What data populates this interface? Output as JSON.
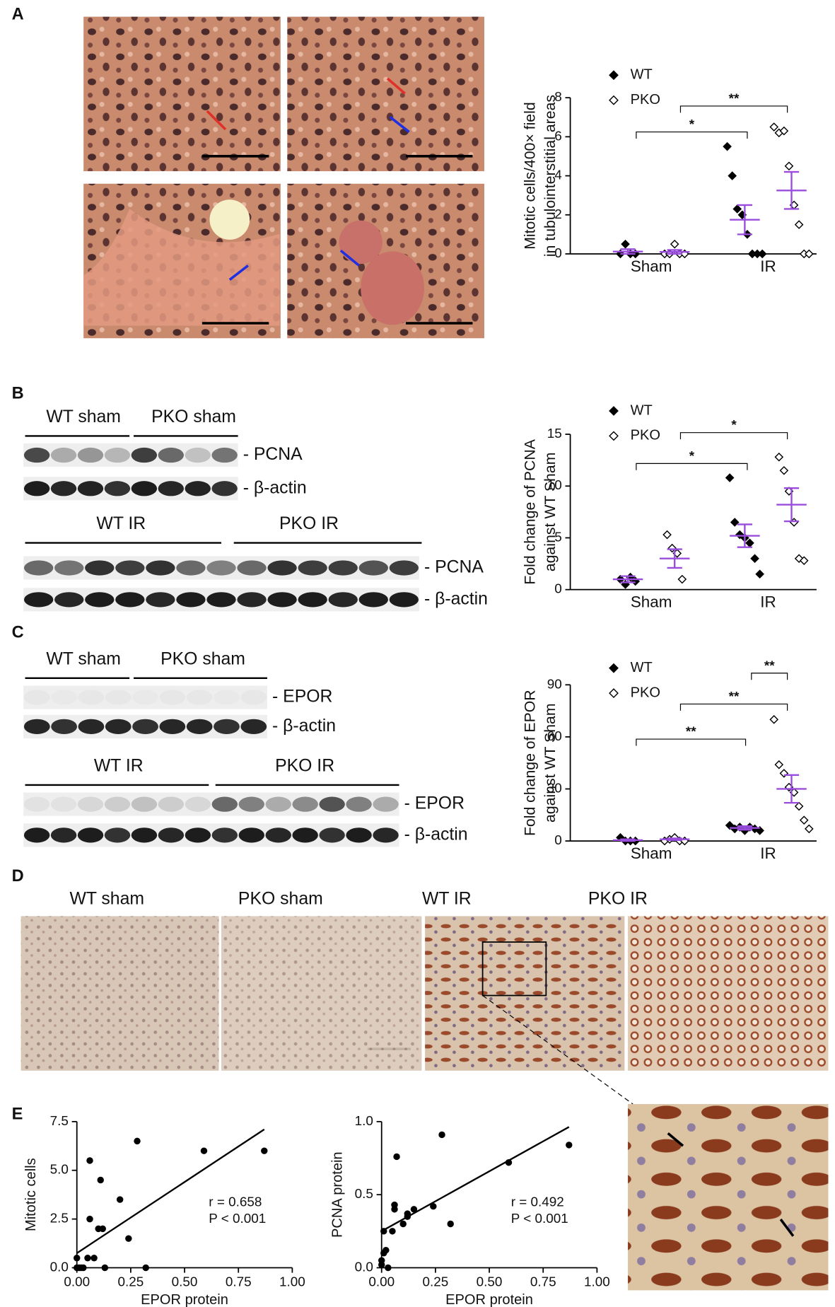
{
  "panel_labels": [
    "A",
    "B",
    "C",
    "D",
    "E"
  ],
  "blots": {
    "B": {
      "top_groups": [
        "WT sham",
        "PKO sham"
      ],
      "top_rows": [
        "- PCNA",
        "- β-actin"
      ],
      "bottom_groups": [
        "WT IR",
        "PKO IR"
      ],
      "bottom_rows": [
        "- PCNA",
        "- β-actin"
      ]
    },
    "C": {
      "top_groups": [
        "WT sham",
        "PKO sham"
      ],
      "top_rows": [
        "- EPOR",
        "- β-actin"
      ],
      "bottom_groups": [
        "WT IR",
        "PKO IR"
      ],
      "bottom_rows": [
        "- EPOR",
        "- β-actin"
      ]
    }
  },
  "micrographs": [
    "WT sham",
    "PKO sham",
    "WT IR",
    "PKO IR"
  ],
  "chart_data": [
    {
      "type": "dot",
      "ylabel": [
        "Mitotic cells/400× field",
        "in tubulointerstitial areas"
      ],
      "categories": [
        "Sham",
        "IR"
      ],
      "ylim": [
        0,
        8
      ],
      "yticks": [
        0,
        2,
        4,
        6,
        8
      ],
      "mean_color": "#9a4ddc",
      "series": [
        {
          "name": "WT",
          "marker": "filled",
          "values": [
            [
              0,
              0.5,
              0,
              0
            ],
            [
              5.5,
              4,
              2.3,
              2,
              1,
              0,
              0,
              0
            ]
          ],
          "mean": [
            0.12,
            1.75
          ],
          "sem": [
            0.12,
            0.75
          ]
        },
        {
          "name": "PKO",
          "marker": "open",
          "values": [
            [
              0,
              0,
              0.5,
              0,
              0
            ],
            [
              6.5,
              6.2,
              6.3,
              4.5,
              2.5,
              1.5,
              0,
              0
            ]
          ],
          "mean": [
            0.1,
            3.25
          ],
          "sem": [
            0.1,
            0.95
          ]
        }
      ],
      "annotations": [
        "*",
        "**"
      ]
    },
    {
      "type": "dot",
      "ylabel": [
        "Fold change of PCNA",
        "against WT Sham"
      ],
      "categories": [
        "Sham",
        "IR"
      ],
      "ylim": [
        0,
        15
      ],
      "yticks": [
        0,
        5,
        10,
        15
      ],
      "mean_color": "#9a4ddc",
      "series": [
        {
          "name": "WT",
          "marker": "filled",
          "values": [
            [
              1,
              0.5,
              1.2,
              0.8
            ],
            [
              10.8,
              6.5,
              5.3,
              5,
              4.5,
              3,
              1.5
            ]
          ],
          "mean": [
            1,
            5.2
          ],
          "sem": [
            0.3,
            1.1
          ]
        },
        {
          "name": "PKO",
          "marker": "open",
          "values": [
            [
              5.3,
              4,
              3.5,
              1
            ],
            [
              12.8,
              11.5,
              9.5,
              6.5,
              3,
              2.8
            ]
          ],
          "mean": [
            3,
            8.2
          ],
          "sem": [
            0.9,
            1.6
          ]
        }
      ],
      "annotations": [
        "*",
        "*"
      ]
    },
    {
      "type": "dot",
      "ylabel": [
        "Fold change of EPOR",
        "against WT Sham"
      ],
      "categories": [
        "Sham",
        "IR"
      ],
      "ylim": [
        0,
        90
      ],
      "yticks": [
        0,
        30,
        60,
        90
      ],
      "mean_color": "#9a4ddc",
      "series": [
        {
          "name": "WT",
          "marker": "filled",
          "values": [
            [
              2,
              0,
              0,
              0
            ],
            [
              9,
              7,
              8,
              6,
              8,
              7,
              6
            ]
          ],
          "mean": [
            0.5,
            7.5
          ],
          "sem": [
            0.5,
            1
          ]
        },
        {
          "name": "PKO",
          "marker": "open",
          "values": [
            [
              0,
              1,
              2,
              0,
              0
            ],
            [
              70,
              44,
              39,
              31,
              28,
              20,
              12,
              7
            ]
          ],
          "mean": [
            1,
            30
          ],
          "sem": [
            0.5,
            8
          ]
        }
      ],
      "annotations": [
        "**",
        "**",
        "**"
      ]
    },
    {
      "type": "scatter",
      "xlabel": "EPOR protein",
      "ylabel": "Mitotic cells",
      "x": [
        0,
        0.01,
        0,
        0.02,
        0.03,
        0.05,
        0.08,
        0.06,
        0.06,
        0.1,
        0.12,
        0.11,
        0.13,
        0.2,
        0.24,
        0.28,
        0.32,
        0.59,
        0.87
      ],
      "values": [
        0,
        0,
        0.5,
        0,
        0,
        0.5,
        0.5,
        2.5,
        5.5,
        2,
        2,
        4.5,
        0,
        3.5,
        1.5,
        6.5,
        0,
        6,
        6
      ],
      "xlim": [
        0,
        1
      ],
      "xticks": [
        {
          "value": 0,
          "label": "0.00"
        },
        {
          "value": 0.25,
          "label": "0.25"
        },
        {
          "value": 0.5,
          "label": "0.50"
        },
        {
          "value": 0.75,
          "label": "0.75"
        },
        {
          "value": 1,
          "label": "1.00"
        }
      ],
      "ylim": [
        0,
        7.5
      ],
      "yticks": [
        {
          "value": 0,
          "label": "0.0"
        },
        {
          "value": 2.5,
          "label": "2.5"
        },
        {
          "value": 5,
          "label": "5.0"
        },
        7.5
      ],
      "fit": {
        "intercept": 0.75,
        "slope": 7.3
      },
      "annotations": [
        "r = 0.658",
        "P < 0.001"
      ]
    },
    {
      "type": "scatter",
      "xlabel": "EPOR protein",
      "ylabel": "PCNA protein",
      "x": [
        0,
        0,
        0.01,
        0.02,
        0.03,
        0.01,
        0.05,
        0.06,
        0.06,
        0.07,
        0.1,
        0.12,
        0.12,
        0.15,
        0.24,
        0.28,
        0.32,
        0.59,
        0.87
      ],
      "values": [
        0.02,
        0.05,
        0.1,
        0.12,
        0,
        0.25,
        0.25,
        0.4,
        0.43,
        0.76,
        0.3,
        0.37,
        0.35,
        0.4,
        0.42,
        0.91,
        0.3,
        0.72,
        0.84
      ],
      "xlim": [
        0,
        1
      ],
      "xticks": [
        {
          "value": 0,
          "label": "0.00"
        },
        {
          "value": 0.25,
          "label": "0.25"
        },
        {
          "value": 0.5,
          "label": "0.50"
        },
        {
          "value": 0.75,
          "label": "0.75"
        },
        {
          "value": 1,
          "label": "1.00"
        }
      ],
      "ylim": [
        0,
        1
      ],
      "yticks": [
        {
          "value": 0,
          "label": "0.0"
        },
        {
          "value": 0.5,
          "label": "0.5"
        },
        {
          "value": 1,
          "label": "1.0"
        }
      ],
      "fit": {
        "intercept": 0.25,
        "slope": 0.82
      },
      "annotations": [
        "r = 0.492",
        "P < 0.001"
      ]
    }
  ]
}
